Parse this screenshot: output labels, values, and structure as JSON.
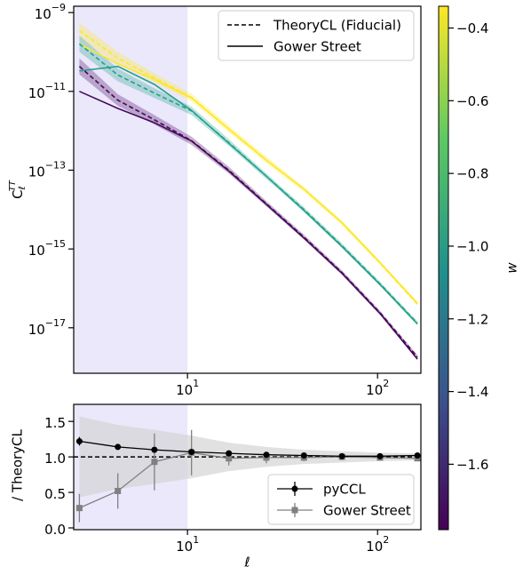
{
  "chart_data": [
    {
      "type": "line",
      "xscale": "log",
      "yscale": "log",
      "xlim": [
        2.52,
        169
      ],
      "ylim": [
        7e-19,
        1.45e-09
      ],
      "xticks": [
        {
          "value": 10,
          "label": "10^1"
        },
        {
          "value": 100,
          "label": "10^2"
        }
      ],
      "yticks": [
        {
          "value": 1e-09,
          "label": "10^−9"
        },
        {
          "value": 1e-11,
          "label": "10^−11"
        },
        {
          "value": 1e-13,
          "label": "10^−13"
        },
        {
          "value": 1e-15,
          "label": "10^−15"
        },
        {
          "value": 1e-17,
          "label": "10^−17"
        }
      ],
      "ylabel": {
        "base": "C",
        "sub": "ℓ",
        "sup": "TT"
      },
      "highlight_xmax": 10,
      "highlight_color": "#ebe8fb",
      "x": [
        2.7,
        4.3,
        6.7,
        10.5,
        16.5,
        26,
        41,
        65,
        103,
        162
      ],
      "legend": {
        "position": "upper right",
        "entries": [
          {
            "name": "TheoryCL (Fiducial)",
            "style": "dashed"
          },
          {
            "name": "Gower Street",
            "style": "solid"
          }
        ]
      },
      "series": [
        {
          "color": "#fde725",
          "theory": [
            3.5e-10,
            7e-11,
            2.2e-11,
            7e-12,
            1.1e-12,
            1.8e-13,
            3.3e-14,
            4.6e-15,
            4.4e-16,
            4e-17
          ],
          "lower": [
            2.2e-10,
            5e-11,
            1.7e-11,
            5.6e-12,
            9e-13,
            1.5e-13,
            2.8e-14,
            4e-15,
            3.9e-16,
            3.6e-17
          ],
          "upper": [
            5.5e-10,
            1e-10,
            2.9e-11,
            8.8e-12,
            1.35e-12,
            2.2e-13,
            3.8e-14,
            5.3e-15,
            5e-16,
            4.5e-17
          ],
          "gower": [
            1.6e-10,
            5e-11,
            2e-11,
            6.8e-12,
            1.1e-12,
            1.8e-13,
            3.3e-14,
            4.6e-15,
            4.5e-16,
            4.2e-17
          ]
        },
        {
          "color": "#21a18a",
          "theory": [
            1.6e-10,
            2.6e-11,
            9e-12,
            3.2e-12,
            5e-13,
            7e-14,
            1e-14,
            1.2e-15,
            1.3e-16,
            1.3e-17
          ],
          "lower": [
            1e-10,
            1.8e-11,
            6.8e-12,
            2.5e-12,
            4.1e-13,
            6e-14,
            8.7e-15,
            1.05e-15,
            1.15e-16,
            1.15e-17
          ],
          "upper": [
            2.6e-10,
            3.8e-11,
            1.2e-11,
            4.1e-12,
            6.1e-13,
            8.2e-14,
            1.15e-14,
            1.38e-15,
            1.47e-16,
            1.47e-17
          ],
          "gower": [
            3.3e-11,
            4.3e-11,
            1.5e-11,
            3.3e-12,
            4.8e-13,
            7e-14,
            9.5e-15,
            1.15e-15,
            1.25e-16,
            1.25e-17
          ]
        },
        {
          "color": "#46085c",
          "theory": [
            4.3e-11,
            6e-12,
            1.9e-12,
            5.6e-13,
            1e-13,
            1.4e-14,
            2e-15,
            2.5e-16,
            2.4e-17,
            1.8e-18
          ],
          "lower": [
            2.7e-11,
            4.3e-12,
            1.45e-12,
            4.4e-13,
            8.2e-14,
            1.2e-14,
            1.73e-15,
            2.2e-16,
            2.12e-17,
            1.6e-18
          ],
          "upper": [
            6.9e-11,
            8.5e-12,
            2.5e-12,
            7.1e-13,
            1.22e-13,
            1.64e-14,
            2.3e-15,
            2.85e-16,
            2.7e-17,
            2.03e-18
          ],
          "gower": [
            1e-11,
            3.7e-12,
            1.6e-12,
            5.5e-13,
            9.5e-14,
            1.35e-14,
            1.9e-15,
            2.4e-16,
            2.3e-17,
            1.6e-18
          ]
        }
      ]
    },
    {
      "type": "errorbar",
      "xscale": "log",
      "yscale": "linear",
      "xlim": [
        2.52,
        169
      ],
      "ylim": [
        -0.025,
        1.74
      ],
      "xticks": [
        {
          "value": 10,
          "label": "10^1"
        },
        {
          "value": 100,
          "label": "10^2"
        }
      ],
      "yticks": [
        {
          "value": 0,
          "label": "0.0"
        },
        0.5,
        {
          "value": 1,
          "label": "1.0"
        },
        1.5
      ],
      "xlabel": "ℓ",
      "ylabel": "/ TheoryCL",
      "highlight_xmax": 10,
      "highlight_color": "#ebe8fb",
      "reference": 1.0,
      "x": [
        2.7,
        4.3,
        6.7,
        10.5,
        16.5,
        26,
        41,
        65,
        103,
        162
      ],
      "band": {
        "color": "#d4d4d4",
        "lower": [
          0.43,
          0.55,
          0.62,
          0.7,
          0.8,
          0.86,
          0.9,
          0.92,
          0.94,
          0.95
        ],
        "upper": [
          1.57,
          1.45,
          1.38,
          1.3,
          1.2,
          1.14,
          1.1,
          1.08,
          1.06,
          1.05
        ]
      },
      "legend": {
        "position": "lower right"
      },
      "series": [
        {
          "name": "pyCCL",
          "color": "#000000",
          "marker": "circle",
          "values": [
            1.22,
            1.14,
            1.1,
            1.07,
            1.05,
            1.03,
            1.02,
            1.01,
            1.01,
            1.02
          ],
          "errors": [
            0.06,
            0.03,
            0.03,
            0.02,
            0.02,
            0.02,
            0.01,
            0.01,
            0.01,
            0.01
          ]
        },
        {
          "name": "Gower Street",
          "color": "#808080",
          "marker": "square",
          "values": [
            0.28,
            0.52,
            0.93,
            1.06,
            0.98,
            0.99,
            0.99,
            1.0,
            0.99,
            0.98
          ],
          "errors": [
            0.2,
            0.25,
            0.4,
            0.32,
            0.1,
            0.08,
            0.05,
            0.04,
            0.03,
            0.03
          ]
        }
      ]
    },
    {
      "type": "colorbar",
      "label": "w",
      "lim": [
        -1.78,
        -0.34
      ],
      "colors": [
        "#440154",
        "#3b528b",
        "#21918c",
        "#5ec962",
        "#fde725"
      ],
      "ticks": [
        {
          "value": -0.4,
          "label": "−0.4"
        },
        {
          "value": -0.6,
          "label": "−0.6"
        },
        {
          "value": -0.8,
          "label": "−0.8"
        },
        {
          "value": -1.0,
          "label": "−1.0"
        },
        {
          "value": -1.2,
          "label": "−1.2"
        },
        {
          "value": -1.4,
          "label": "−1.4"
        },
        {
          "value": -1.6,
          "label": "−1.6"
        }
      ]
    }
  ]
}
